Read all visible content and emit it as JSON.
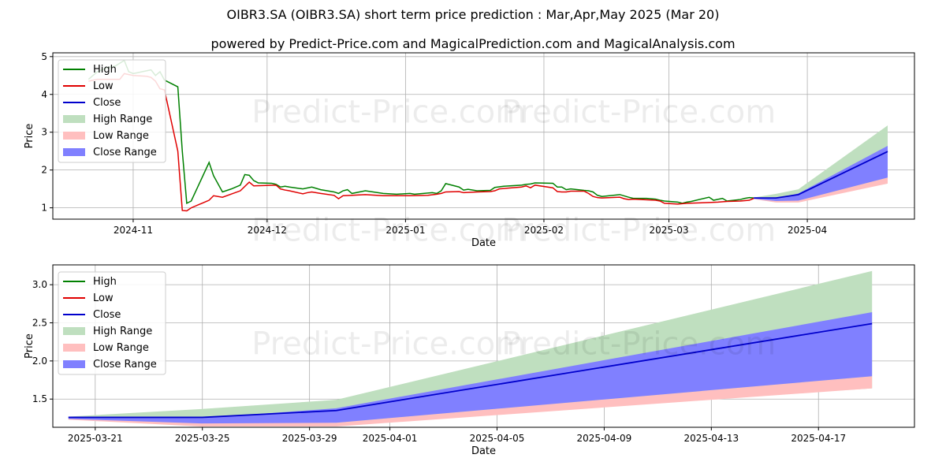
{
  "title": "OIBR3.SA (OIBR3.SA) short term price prediction : Mar,Apr,May 2025 (Mar 20)",
  "subtitle": "powered by Predict-Price.com and MagicalPrediction.com and MagicalAnalysis.com",
  "watermark": "Predict-Price.com",
  "colors": {
    "high": "#008000",
    "low": "#e00000",
    "close": "#0000cc",
    "high_range": "#bfdfbf",
    "low_range": "#ffbfbf",
    "close_range": "#8080ff",
    "grid": "#b0b0b0"
  },
  "legend": [
    {
      "key": "high",
      "label": "High",
      "kind": "line"
    },
    {
      "key": "low",
      "label": "Low",
      "kind": "line"
    },
    {
      "key": "close",
      "label": "Close",
      "kind": "line"
    },
    {
      "key": "high_range",
      "label": "High Range",
      "kind": "patch"
    },
    {
      "key": "low_range",
      "label": "Low Range",
      "kind": "patch"
    },
    {
      "key": "close_range",
      "label": "Close Range",
      "kind": "patch"
    }
  ],
  "chart_data": [
    {
      "type": "line",
      "panel": "top",
      "xlabel": "Date",
      "ylabel": "Price",
      "xlim": [
        "2024-10-14",
        "2025-04-25"
      ],
      "ylim": [
        0.7,
        5.1
      ],
      "yticks": [
        1,
        2,
        3,
        4,
        5
      ],
      "xticks": [
        {
          "date": "2024-11-01",
          "label": "2024-11"
        },
        {
          "date": "2024-12-01",
          "label": "2024-12"
        },
        {
          "date": "2025-01-01",
          "label": "2025-01"
        },
        {
          "date": "2025-02-01",
          "label": "2025-02"
        },
        {
          "date": "2025-03-01",
          "label": "2025-03"
        },
        {
          "date": "2025-04-01",
          "label": "2025-04"
        }
      ],
      "grid": true,
      "legend_position": "upper-left",
      "history_high": [
        [
          "2024-10-22",
          4.4
        ],
        [
          "2024-10-24",
          4.6
        ],
        [
          "2024-10-26",
          4.7
        ],
        [
          "2024-10-28",
          4.75
        ],
        [
          "2024-10-30",
          4.9
        ],
        [
          "2024-10-31",
          4.6
        ],
        [
          "2024-11-01",
          4.55
        ],
        [
          "2024-11-03",
          4.6
        ],
        [
          "2024-11-05",
          4.65
        ],
        [
          "2024-11-06",
          4.5
        ],
        [
          "2024-11-07",
          4.6
        ],
        [
          "2024-11-08",
          4.38
        ],
        [
          "2024-11-11",
          4.2
        ],
        [
          "2024-11-12",
          2.5
        ],
        [
          "2024-11-13",
          1.12
        ],
        [
          "2024-11-14",
          1.18
        ],
        [
          "2024-11-18",
          2.2
        ],
        [
          "2024-11-19",
          1.85
        ],
        [
          "2024-11-21",
          1.42
        ],
        [
          "2024-11-23",
          1.5
        ],
        [
          "2024-11-25",
          1.6
        ],
        [
          "2024-11-26",
          1.88
        ],
        [
          "2024-11-27",
          1.86
        ],
        [
          "2024-11-28",
          1.72
        ],
        [
          "2024-11-29",
          1.66
        ],
        [
          "2024-12-02",
          1.65
        ],
        [
          "2024-12-03",
          1.62
        ],
        [
          "2024-12-04",
          1.55
        ],
        [
          "2024-12-05",
          1.57
        ],
        [
          "2024-12-06",
          1.55
        ],
        [
          "2024-12-09",
          1.5
        ],
        [
          "2024-12-11",
          1.55
        ],
        [
          "2024-12-13",
          1.48
        ],
        [
          "2024-12-16",
          1.42
        ],
        [
          "2024-12-17",
          1.38
        ],
        [
          "2024-12-18",
          1.45
        ],
        [
          "2024-12-19",
          1.48
        ],
        [
          "2024-12-20",
          1.38
        ],
        [
          "2024-12-23",
          1.45
        ],
        [
          "2024-12-27",
          1.38
        ],
        [
          "2024-12-30",
          1.36
        ],
        [
          "2025-01-02",
          1.38
        ],
        [
          "2025-01-03",
          1.36
        ],
        [
          "2025-01-06",
          1.39
        ],
        [
          "2025-01-07",
          1.4
        ],
        [
          "2025-01-08",
          1.38
        ],
        [
          "2025-01-09",
          1.45
        ],
        [
          "2025-01-10",
          1.64
        ],
        [
          "2025-01-13",
          1.55
        ],
        [
          "2025-01-14",
          1.47
        ],
        [
          "2025-01-15",
          1.49
        ],
        [
          "2025-01-17",
          1.45
        ],
        [
          "2025-01-20",
          1.46
        ],
        [
          "2025-01-21",
          1.54
        ],
        [
          "2025-01-23",
          1.57
        ],
        [
          "2025-01-27",
          1.6
        ],
        [
          "2025-01-28",
          1.62
        ],
        [
          "2025-01-29",
          1.63
        ],
        [
          "2025-01-30",
          1.66
        ],
        [
          "2025-02-03",
          1.65
        ],
        [
          "2025-02-04",
          1.55
        ],
        [
          "2025-02-05",
          1.55
        ],
        [
          "2025-02-06",
          1.48
        ],
        [
          "2025-02-07",
          1.5
        ],
        [
          "2025-02-10",
          1.46
        ],
        [
          "2025-02-11",
          1.45
        ],
        [
          "2025-02-12",
          1.42
        ],
        [
          "2025-02-13",
          1.33
        ],
        [
          "2025-02-14",
          1.3
        ],
        [
          "2025-02-18",
          1.35
        ],
        [
          "2025-02-20",
          1.28
        ],
        [
          "2025-02-21",
          1.25
        ],
        [
          "2025-02-24",
          1.25
        ],
        [
          "2025-02-26",
          1.23
        ],
        [
          "2025-02-27",
          1.2
        ],
        [
          "2025-02-28",
          1.18
        ],
        [
          "2025-03-03",
          1.15
        ],
        [
          "2025-03-04",
          1.12
        ],
        [
          "2025-03-05",
          1.15
        ],
        [
          "2025-03-06",
          1.17
        ],
        [
          "2025-03-10",
          1.28
        ],
        [
          "2025-03-11",
          1.2
        ],
        [
          "2025-03-13",
          1.25
        ],
        [
          "2025-03-14",
          1.18
        ],
        [
          "2025-03-17",
          1.22
        ],
        [
          "2025-03-18",
          1.25
        ],
        [
          "2025-03-19",
          1.27
        ],
        [
          "2025-03-20",
          1.26
        ]
      ],
      "history_low": [
        [
          "2024-10-22",
          4.35
        ],
        [
          "2024-10-24",
          4.4
        ],
        [
          "2024-10-26",
          4.4
        ],
        [
          "2024-10-29",
          4.4
        ],
        [
          "2024-10-30",
          4.55
        ],
        [
          "2024-11-01",
          4.5
        ],
        [
          "2024-11-04",
          4.48
        ],
        [
          "2024-11-05",
          4.45
        ],
        [
          "2024-11-06",
          4.35
        ],
        [
          "2024-11-07",
          4.15
        ],
        [
          "2024-11-08",
          4.12
        ],
        [
          "2024-11-11",
          2.5
        ],
        [
          "2024-11-12",
          0.93
        ],
        [
          "2024-11-13",
          0.92
        ],
        [
          "2024-11-14",
          1.0
        ],
        [
          "2024-11-18",
          1.2
        ],
        [
          "2024-11-19",
          1.32
        ],
        [
          "2024-11-21",
          1.28
        ],
        [
          "2024-11-25",
          1.45
        ],
        [
          "2024-11-27",
          1.68
        ],
        [
          "2024-11-28",
          1.58
        ],
        [
          "2024-12-03",
          1.6
        ],
        [
          "2024-12-04",
          1.5
        ],
        [
          "2024-12-05",
          1.47
        ],
        [
          "2024-12-06",
          1.45
        ],
        [
          "2024-12-09",
          1.37
        ],
        [
          "2024-12-10",
          1.4
        ],
        [
          "2024-12-11",
          1.42
        ],
        [
          "2024-12-13",
          1.38
        ],
        [
          "2024-12-16",
          1.33
        ],
        [
          "2024-12-17",
          1.24
        ],
        [
          "2024-12-18",
          1.32
        ],
        [
          "2024-12-20",
          1.33
        ],
        [
          "2024-12-23",
          1.35
        ],
        [
          "2024-12-27",
          1.32
        ],
        [
          "2025-01-02",
          1.32
        ],
        [
          "2025-01-06",
          1.33
        ],
        [
          "2025-01-08",
          1.36
        ],
        [
          "2025-01-09",
          1.38
        ],
        [
          "2025-01-10",
          1.42
        ],
        [
          "2025-01-13",
          1.43
        ],
        [
          "2025-01-14",
          1.4
        ],
        [
          "2025-01-17",
          1.42
        ],
        [
          "2025-01-20",
          1.43
        ],
        [
          "2025-01-21",
          1.45
        ],
        [
          "2025-01-22",
          1.5
        ],
        [
          "2025-01-24",
          1.52
        ],
        [
          "2025-01-27",
          1.55
        ],
        [
          "2025-01-28",
          1.58
        ],
        [
          "2025-01-29",
          1.53
        ],
        [
          "2025-01-30",
          1.6
        ],
        [
          "2025-02-03",
          1.53
        ],
        [
          "2025-02-04",
          1.43
        ],
        [
          "2025-02-05",
          1.42
        ],
        [
          "2025-02-06",
          1.42
        ],
        [
          "2025-02-07",
          1.44
        ],
        [
          "2025-02-10",
          1.44
        ],
        [
          "2025-02-11",
          1.38
        ],
        [
          "2025-02-12",
          1.3
        ],
        [
          "2025-02-13",
          1.27
        ],
        [
          "2025-02-14",
          1.26
        ],
        [
          "2025-02-18",
          1.28
        ],
        [
          "2025-02-19",
          1.24
        ],
        [
          "2025-02-20",
          1.22
        ],
        [
          "2025-02-21",
          1.23
        ],
        [
          "2025-02-26",
          1.2
        ],
        [
          "2025-02-27",
          1.18
        ],
        [
          "2025-02-28",
          1.12
        ],
        [
          "2025-03-03",
          1.1
        ],
        [
          "2025-03-05",
          1.12
        ],
        [
          "2025-03-10",
          1.14
        ],
        [
          "2025-03-12",
          1.15
        ],
        [
          "2025-03-14",
          1.17
        ],
        [
          "2025-03-17",
          1.18
        ],
        [
          "2025-03-19",
          1.2
        ],
        [
          "2025-03-20",
          1.25
        ]
      ],
      "forecast": {
        "dates": [
          "2025-03-20",
          "2025-03-25",
          "2025-03-30",
          "2025-04-19"
        ],
        "close": [
          1.26,
          1.26,
          1.35,
          2.49
        ],
        "high_range": [
          [
            1.25,
            1.27
          ],
          [
            1.21,
            1.37
          ],
          [
            1.19,
            1.49
          ],
          [
            1.64,
            3.18
          ]
        ],
        "close_range": [
          [
            1.24,
            1.27
          ],
          [
            1.18,
            1.25
          ],
          [
            1.19,
            1.38
          ],
          [
            1.8,
            2.64
          ]
        ],
        "low_range": [
          [
            1.23,
            1.25
          ],
          [
            1.14,
            1.22
          ],
          [
            1.14,
            1.19
          ],
          [
            1.64,
            1.8
          ]
        ]
      }
    },
    {
      "type": "area",
      "panel": "bottom",
      "xlabel": "Date",
      "ylabel": "Price",
      "xlim": [
        "2025-03-19 10:00",
        "2025-04-20 14:00"
      ],
      "ylim": [
        1.13,
        3.26
      ],
      "yticks": [
        1.5,
        2.0,
        2.5,
        3.0
      ],
      "ytick_labels": [
        "1.5",
        "2.0",
        "2.5",
        "3.0"
      ],
      "xticks": [
        {
          "date": "2025-03-21",
          "label": "2025-03-21"
        },
        {
          "date": "2025-03-25",
          "label": "2025-03-25"
        },
        {
          "date": "2025-03-29",
          "label": "2025-03-29"
        },
        {
          "date": "2025-04-01",
          "label": "2025-04-01"
        },
        {
          "date": "2025-04-05",
          "label": "2025-04-05"
        },
        {
          "date": "2025-04-09",
          "label": "2025-04-09"
        },
        {
          "date": "2025-04-13",
          "label": "2025-04-13"
        },
        {
          "date": "2025-04-17",
          "label": "2025-04-17"
        }
      ],
      "grid": true,
      "legend_position": "upper-left",
      "forecast": {
        "dates": [
          "2025-03-20",
          "2025-03-25",
          "2025-03-30",
          "2025-04-19"
        ],
        "close": [
          1.26,
          1.26,
          1.35,
          2.49
        ],
        "high_range": [
          [
            1.25,
            1.27
          ],
          [
            1.21,
            1.37
          ],
          [
            1.19,
            1.49
          ],
          [
            1.64,
            3.18
          ]
        ],
        "close_range": [
          [
            1.24,
            1.27
          ],
          [
            1.18,
            1.25
          ],
          [
            1.19,
            1.38
          ],
          [
            1.8,
            2.64
          ]
        ],
        "low_range": [
          [
            1.23,
            1.25
          ],
          [
            1.14,
            1.22
          ],
          [
            1.14,
            1.19
          ],
          [
            1.64,
            1.8
          ]
        ]
      }
    }
  ]
}
